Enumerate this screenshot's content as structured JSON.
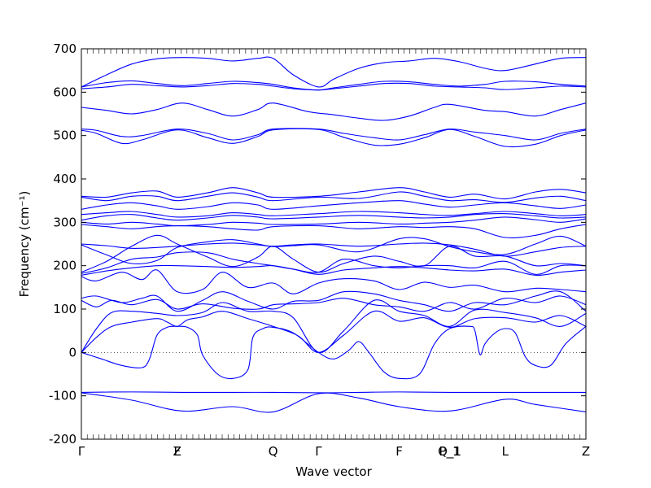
{
  "chart_data": {
    "type": "line",
    "xlabel": "Wave vector",
    "ylabel": "Frequency (cm⁻¹)",
    "ylim": [
      -200,
      700
    ],
    "yticks": [
      -200,
      -100,
      0,
      100,
      200,
      300,
      400,
      500,
      600,
      700
    ],
    "grid": false,
    "legend": "none",
    "line_color": "#0000ff",
    "zero_line": {
      "y": 0,
      "style": "dotted"
    },
    "path_ticks": [
      {
        "label": "Γ",
        "x": 0.0
      },
      {
        "label": "Z",
        "x": 0.19
      },
      {
        "label": "F",
        "x": 0.19
      },
      {
        "label": "Q",
        "x": 0.38
      },
      {
        "label": "Γ",
        "x": 0.47
      },
      {
        "label": "F",
        "x": 0.63
      },
      {
        "label": "P_1",
        "x": 0.73
      },
      {
        "label": "Q_1",
        "x": 0.73
      },
      {
        "label": "L",
        "x": 0.84
      },
      {
        "label": "Z",
        "x": 1.0
      }
    ],
    "series": [
      {
        "x": [
          0,
          0.05,
          0.1,
          0.15,
          0.2,
          0.25,
          0.3,
          0.35,
          0.38,
          0.42,
          0.47,
          0.5,
          0.55,
          0.6,
          0.65,
          0.7,
          0.75,
          0.8,
          0.84,
          0.9,
          0.95,
          1.0
        ],
        "y": [
          612,
          640,
          665,
          677,
          680,
          678,
          672,
          678,
          678,
          640,
          612,
          630,
          655,
          668,
          672,
          678,
          670,
          655,
          650,
          665,
          678,
          680
        ]
      },
      {
        "x": [
          0,
          0.05,
          0.1,
          0.15,
          0.2,
          0.25,
          0.3,
          0.35,
          0.38,
          0.42,
          0.47,
          0.5,
          0.55,
          0.6,
          0.65,
          0.7,
          0.75,
          0.8,
          0.84,
          0.9,
          0.95,
          1.0
        ],
        "y": [
          612,
          622,
          626,
          620,
          615,
          620,
          625,
          622,
          618,
          610,
          605,
          610,
          618,
          625,
          624,
          618,
          614,
          618,
          625,
          624,
          618,
          614
        ]
      },
      {
        "x": [
          0,
          0.05,
          0.1,
          0.15,
          0.2,
          0.25,
          0.3,
          0.35,
          0.38,
          0.42,
          0.47,
          0.5,
          0.55,
          0.6,
          0.65,
          0.7,
          0.75,
          0.8,
          0.84,
          0.9,
          0.95,
          1.0
        ],
        "y": [
          608,
          612,
          618,
          615,
          612,
          615,
          620,
          618,
          614,
          608,
          605,
          608,
          614,
          620,
          620,
          614,
          612,
          610,
          606,
          610,
          614,
          612
        ]
      },
      {
        "x": [
          0,
          0.05,
          0.1,
          0.15,
          0.2,
          0.25,
          0.3,
          0.35,
          0.38,
          0.45,
          0.5,
          0.55,
          0.6,
          0.65,
          0.7,
          0.73,
          0.8,
          0.84,
          0.9,
          0.95,
          1.0
        ],
        "y": [
          565,
          558,
          550,
          560,
          575,
          560,
          545,
          560,
          575,
          555,
          548,
          540,
          535,
          545,
          565,
          572,
          558,
          555,
          545,
          560,
          575
        ]
      },
      {
        "x": [
          0,
          0.03,
          0.08,
          0.12,
          0.19,
          0.25,
          0.3,
          0.35,
          0.38,
          0.47,
          0.52,
          0.58,
          0.63,
          0.68,
          0.73,
          0.78,
          0.84,
          0.9,
          0.95,
          1.0
        ],
        "y": [
          515,
          512,
          498,
          500,
          515,
          505,
          490,
          502,
          515,
          515,
          505,
          495,
          490,
          502,
          515,
          508,
          500,
          490,
          505,
          515
        ]
      },
      {
        "x": [
          0,
          0.03,
          0.08,
          0.12,
          0.19,
          0.25,
          0.3,
          0.35,
          0.38,
          0.47,
          0.52,
          0.58,
          0.63,
          0.68,
          0.73,
          0.78,
          0.84,
          0.9,
          0.95,
          1.0
        ],
        "y": [
          512,
          505,
          482,
          490,
          513,
          495,
          482,
          498,
          513,
          514,
          496,
          478,
          480,
          495,
          514,
          498,
          475,
          480,
          500,
          513
        ]
      },
      {
        "x": [
          0,
          0.05,
          0.1,
          0.15,
          0.19,
          0.25,
          0.3,
          0.35,
          0.38,
          0.47,
          0.55,
          0.63,
          0.68,
          0.73,
          0.78,
          0.84,
          0.9,
          0.95,
          1.0
        ],
        "y": [
          360,
          358,
          368,
          372,
          358,
          368,
          380,
          368,
          358,
          360,
          370,
          380,
          370,
          358,
          365,
          354,
          370,
          376,
          368
        ]
      },
      {
        "x": [
          0,
          0.05,
          0.1,
          0.15,
          0.19,
          0.25,
          0.3,
          0.35,
          0.38,
          0.47,
          0.55,
          0.63,
          0.68,
          0.73,
          0.78,
          0.84,
          0.9,
          0.95,
          1.0
        ],
        "y": [
          358,
          350,
          360,
          360,
          350,
          360,
          368,
          358,
          350,
          358,
          355,
          370,
          360,
          350,
          352,
          346,
          356,
          360,
          350
        ]
      },
      {
        "x": [
          0,
          0.05,
          0.1,
          0.15,
          0.19,
          0.25,
          0.3,
          0.35,
          0.38,
          0.47,
          0.55,
          0.63,
          0.68,
          0.73,
          0.78,
          0.84,
          0.9,
          0.95,
          1.0
        ],
        "y": [
          330,
          340,
          345,
          338,
          330,
          336,
          345,
          340,
          330,
          338,
          345,
          350,
          342,
          335,
          340,
          345,
          338,
          332,
          340
        ]
      },
      {
        "x": [
          0,
          0.05,
          0.1,
          0.15,
          0.19,
          0.25,
          0.3,
          0.35,
          0.38,
          0.47,
          0.55,
          0.63,
          0.68,
          0.73,
          0.78,
          0.84,
          0.9,
          0.95,
          1.0
        ],
        "y": [
          318,
          322,
          325,
          318,
          312,
          315,
          322,
          318,
          315,
          320,
          325,
          322,
          318,
          316,
          320,
          325,
          320,
          315,
          318
        ]
      },
      {
        "x": [
          0,
          0.05,
          0.1,
          0.15,
          0.19,
          0.25,
          0.3,
          0.35,
          0.38,
          0.47,
          0.55,
          0.63,
          0.68,
          0.73,
          0.78,
          0.84,
          0.9,
          0.95,
          1.0
        ],
        "y": [
          305,
          315,
          318,
          310,
          305,
          310,
          316,
          312,
          308,
          312,
          316,
          312,
          310,
          312,
          318,
          320,
          315,
          310,
          312
        ]
      },
      {
        "x": [
          0,
          0.05,
          0.1,
          0.15,
          0.19,
          0.25,
          0.3,
          0.35,
          0.38,
          0.47,
          0.55,
          0.63,
          0.68,
          0.73,
          0.78,
          0.84,
          0.9,
          0.95,
          1.0
        ],
        "y": [
          300,
          296,
          300,
          296,
          292,
          295,
          300,
          298,
          295,
          296,
          300,
          296,
          298,
          300,
          305,
          312,
          306,
          300,
          308
        ]
      },
      {
        "x": [
          0,
          0.05,
          0.1,
          0.15,
          0.19,
          0.25,
          0.3,
          0.35,
          0.38,
          0.47,
          0.55,
          0.63,
          0.68,
          0.73,
          0.78,
          0.84,
          0.9,
          0.95,
          1.0
        ],
        "y": [
          295,
          290,
          285,
          290,
          292,
          290,
          285,
          282,
          290,
          292,
          285,
          290,
          288,
          290,
          285,
          265,
          270,
          285,
          295
        ]
      },
      {
        "x": [
          0,
          0.05,
          0.1,
          0.15,
          0.19,
          0.25,
          0.3,
          0.35,
          0.38,
          0.42,
          0.47,
          0.55,
          0.63,
          0.68,
          0.73,
          0.78,
          0.84,
          0.9,
          0.95,
          1.0
        ],
        "y": [
          250,
          246,
          240,
          242,
          245,
          250,
          252,
          248,
          245,
          248,
          250,
          245,
          250,
          252,
          248,
          238,
          222,
          232,
          242,
          245
        ]
      },
      {
        "x": [
          0,
          0.05,
          0.1,
          0.15,
          0.19,
          0.25,
          0.3,
          0.35,
          0.38,
          0.42,
          0.47,
          0.55,
          0.63,
          0.68,
          0.73,
          0.78,
          0.84,
          0.9,
          0.95,
          1.0
        ],
        "y": [
          248,
          225,
          205,
          212,
          242,
          255,
          260,
          250,
          244,
          246,
          248,
          232,
          262,
          262,
          244,
          232,
          226,
          250,
          268,
          245
        ]
      },
      {
        "x": [
          0,
          0.05,
          0.1,
          0.15,
          0.19,
          0.25,
          0.3,
          0.35,
          0.38,
          0.42,
          0.47,
          0.52,
          0.58,
          0.63,
          0.68,
          0.73,
          0.78,
          0.84,
          0.9,
          0.95,
          1.0
        ],
        "y": [
          185,
          210,
          245,
          270,
          250,
          220,
          198,
          220,
          245,
          215,
          185,
          205,
          222,
          210,
          200,
          245,
          222,
          222,
          200,
          205,
          200
        ]
      },
      {
        "x": [
          0,
          0.05,
          0.1,
          0.15,
          0.19,
          0.25,
          0.3,
          0.35,
          0.38,
          0.42,
          0.47,
          0.52,
          0.58,
          0.63,
          0.68,
          0.73,
          0.78,
          0.84,
          0.9,
          0.95,
          1.0
        ],
        "y": [
          182,
          195,
          215,
          220,
          230,
          230,
          215,
          205,
          200,
          192,
          185,
          215,
          200,
          195,
          200,
          200,
          195,
          210,
          180,
          200,
          200
        ]
      },
      {
        "x": [
          0,
          0.05,
          0.1,
          0.15,
          0.19,
          0.25,
          0.3,
          0.35,
          0.38,
          0.42,
          0.47,
          0.52,
          0.58,
          0.63,
          0.68,
          0.73,
          0.78,
          0.84,
          0.9,
          0.95,
          1.0
        ],
        "y": [
          178,
          188,
          195,
          200,
          200,
          198,
          196,
          198,
          200,
          192,
          180,
          190,
          195,
          198,
          195,
          190,
          188,
          192,
          178,
          185,
          190
        ]
      },
      {
        "x": [
          0,
          0.03,
          0.08,
          0.12,
          0.15,
          0.19,
          0.24,
          0.28,
          0.33,
          0.38,
          0.42,
          0.47,
          0.52,
          0.58,
          0.63,
          0.68,
          0.73,
          0.78,
          0.84,
          0.9,
          0.95,
          1.0
        ],
        "y": [
          175,
          165,
          185,
          168,
          190,
          140,
          145,
          185,
          150,
          160,
          135,
          160,
          170,
          165,
          145,
          162,
          150,
          155,
          140,
          148,
          145,
          140
        ]
      },
      {
        "x": [
          0,
          0.03,
          0.08,
          0.12,
          0.15,
          0.19,
          0.24,
          0.28,
          0.33,
          0.38,
          0.42,
          0.47,
          0.52,
          0.58,
          0.63,
          0.68,
          0.73,
          0.78,
          0.84,
          0.9,
          0.95,
          1.0
        ],
        "y": [
          125,
          130,
          115,
          125,
          130,
          95,
          120,
          140,
          118,
          100,
          118,
          120,
          140,
          135,
          120,
          110,
          95,
          115,
          110,
          130,
          140,
          95
        ]
      },
      {
        "x": [
          0,
          0.03,
          0.06,
          0.1,
          0.15,
          0.19,
          0.24,
          0.3,
          0.35,
          0.38,
          0.42,
          0.47,
          0.52,
          0.58,
          0.63,
          0.68,
          0.73,
          0.78,
          0.84,
          0.9,
          0.95,
          1.0
        ],
        "y": [
          120,
          105,
          120,
          110,
          122,
          100,
          112,
          102,
          100,
          110,
          112,
          115,
          125,
          110,
          105,
          95,
          115,
          100,
          125,
          115,
          130,
          110
        ]
      },
      {
        "x": [
          0,
          0.03,
          0.06,
          0.1,
          0.15,
          0.19,
          0.24,
          0.28,
          0.33,
          0.38,
          0.42,
          0.47,
          0.52,
          0.58,
          0.63,
          0.68,
          0.73,
          0.78,
          0.84,
          0.9,
          0.95,
          1.0
        ],
        "y": [
          0,
          55,
          92,
          95,
          90,
          85,
          92,
          115,
          95,
          95,
          80,
          0,
          50,
          120,
          95,
          85,
          60,
          98,
          92,
          80,
          60,
          90
        ]
      },
      {
        "x": [
          0,
          0.03,
          0.06,
          0.1,
          0.15,
          0.17,
          0.19,
          0.21,
          0.24,
          0.28,
          0.33,
          0.38,
          0.43,
          0.47,
          0.52,
          0.58,
          0.63,
          0.68,
          0.73,
          0.78,
          0.84,
          0.9,
          0.95,
          1.0
        ],
        "y": [
          0,
          35,
          60,
          70,
          78,
          70,
          60,
          75,
          82,
          95,
          78,
          60,
          38,
          0,
          40,
          95,
          72,
          80,
          58,
          78,
          80,
          70,
          85,
          60
        ]
      },
      {
        "x": [
          0,
          0.04,
          0.08,
          0.12,
          0.135,
          0.15,
          0.17,
          0.19,
          0.21,
          0.23,
          0.24,
          0.27,
          0.3,
          0.33,
          0.34,
          0.36,
          0.38,
          0.42,
          0.47,
          0.5,
          0.53,
          0.55,
          0.57,
          0.6,
          0.63,
          0.67,
          0.7,
          0.73,
          0.77,
          0.78,
          0.79,
          0.8,
          0.82,
          0.84,
          0.86,
          0.88,
          0.9,
          0.93,
          0.96,
          1.0
        ],
        "y": [
          0,
          -15,
          -30,
          -35,
          -15,
          40,
          58,
          60,
          58,
          40,
          -5,
          -50,
          -60,
          -40,
          35,
          55,
          58,
          45,
          0,
          -15,
          5,
          25,
          0,
          -45,
          -60,
          -50,
          20,
          55,
          60,
          50,
          -5,
          20,
          45,
          55,
          45,
          -10,
          -30,
          -30,
          20,
          60
        ]
      },
      {
        "x": [
          0,
          0.1,
          0.2,
          0.3,
          0.38,
          0.47,
          0.55,
          0.63,
          0.73,
          0.84,
          0.9,
          1.0
        ],
        "y": [
          -92,
          -91,
          -92,
          -92,
          -92,
          -93,
          -92,
          -91,
          -92,
          -92,
          -92,
          -92
        ]
      },
      {
        "x": [
          0,
          0.1,
          0.2,
          0.3,
          0.38,
          0.47,
          0.55,
          0.63,
          0.73,
          0.84,
          0.9,
          1.0
        ],
        "y": [
          -93,
          -110,
          -135,
          -125,
          -137,
          -95,
          -105,
          -125,
          -135,
          -108,
          -120,
          -137
        ]
      }
    ]
  }
}
